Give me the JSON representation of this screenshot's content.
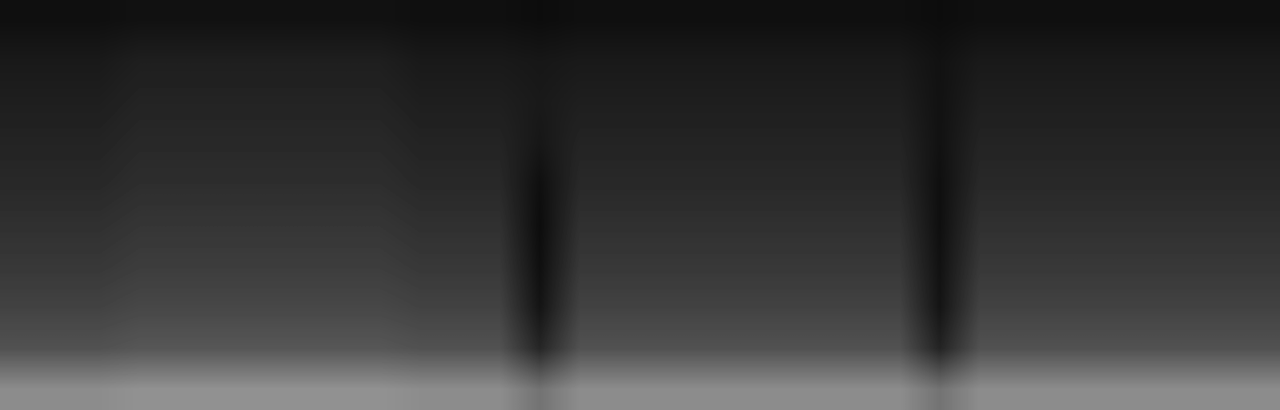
{
  "chart_data": {
    "type": "heatmap",
    "tick_labels": false,
    "grid": false,
    "color": "gray",
    "color_range": [
      0,
      1
    ],
    "cells": [
      [
        0.06,
        0.06,
        0.06,
        0.07,
        0.07,
        0.07,
        0.07,
        0.07,
        0.07,
        0.07,
        0.06,
        0.06,
        0.06,
        0.05,
        0.06,
        0.06,
        0.06,
        0.06,
        0.06,
        0.06,
        0.06,
        0.06,
        0.06,
        0.05,
        0.06,
        0.06,
        0.06,
        0.06,
        0.06,
        0.06,
        0.06,
        0.06
      ],
      [
        0.1,
        0.1,
        0.1,
        0.12,
        0.12,
        0.12,
        0.12,
        0.12,
        0.12,
        0.12,
        0.1,
        0.1,
        0.1,
        0.09,
        0.1,
        0.1,
        0.1,
        0.1,
        0.1,
        0.1,
        0.1,
        0.1,
        0.1,
        0.07,
        0.1,
        0.1,
        0.1,
        0.1,
        0.1,
        0.1,
        0.1,
        0.1
      ],
      [
        0.12,
        0.12,
        0.12,
        0.14,
        0.14,
        0.14,
        0.14,
        0.14,
        0.14,
        0.14,
        0.12,
        0.12,
        0.12,
        0.1,
        0.12,
        0.12,
        0.12,
        0.12,
        0.12,
        0.12,
        0.12,
        0.12,
        0.12,
        0.07,
        0.12,
        0.12,
        0.12,
        0.12,
        0.12,
        0.12,
        0.12,
        0.12
      ],
      [
        0.14,
        0.14,
        0.14,
        0.16,
        0.16,
        0.16,
        0.16,
        0.16,
        0.16,
        0.16,
        0.14,
        0.14,
        0.14,
        0.09,
        0.14,
        0.14,
        0.14,
        0.14,
        0.14,
        0.14,
        0.14,
        0.14,
        0.14,
        0.07,
        0.14,
        0.14,
        0.14,
        0.14,
        0.14,
        0.14,
        0.14,
        0.14
      ],
      [
        0.16,
        0.16,
        0.16,
        0.18,
        0.18,
        0.18,
        0.18,
        0.18,
        0.18,
        0.18,
        0.16,
        0.16,
        0.16,
        0.06,
        0.16,
        0.16,
        0.16,
        0.16,
        0.16,
        0.16,
        0.16,
        0.16,
        0.16,
        0.06,
        0.16,
        0.16,
        0.16,
        0.16,
        0.16,
        0.16,
        0.16,
        0.16
      ],
      [
        0.19,
        0.19,
        0.19,
        0.21,
        0.21,
        0.21,
        0.21,
        0.21,
        0.21,
        0.21,
        0.19,
        0.19,
        0.19,
        0.05,
        0.19,
        0.19,
        0.19,
        0.19,
        0.19,
        0.19,
        0.19,
        0.19,
        0.19,
        0.06,
        0.19,
        0.19,
        0.19,
        0.19,
        0.19,
        0.19,
        0.19,
        0.19
      ],
      [
        0.22,
        0.22,
        0.22,
        0.24,
        0.24,
        0.24,
        0.24,
        0.24,
        0.24,
        0.24,
        0.22,
        0.22,
        0.22,
        0.06,
        0.22,
        0.22,
        0.22,
        0.22,
        0.22,
        0.22,
        0.22,
        0.22,
        0.22,
        0.07,
        0.22,
        0.22,
        0.22,
        0.22,
        0.22,
        0.22,
        0.22,
        0.22
      ],
      [
        0.26,
        0.26,
        0.26,
        0.28,
        0.28,
        0.28,
        0.28,
        0.28,
        0.28,
        0.28,
        0.26,
        0.26,
        0.26,
        0.08,
        0.26,
        0.26,
        0.26,
        0.26,
        0.26,
        0.26,
        0.26,
        0.26,
        0.26,
        0.08,
        0.26,
        0.26,
        0.26,
        0.26,
        0.26,
        0.26,
        0.26,
        0.26
      ],
      [
        0.32,
        0.32,
        0.32,
        0.34,
        0.34,
        0.34,
        0.34,
        0.34,
        0.34,
        0.34,
        0.32,
        0.32,
        0.32,
        0.15,
        0.32,
        0.32,
        0.32,
        0.32,
        0.32,
        0.32,
        0.32,
        0.32,
        0.32,
        0.14,
        0.32,
        0.32,
        0.32,
        0.32,
        0.32,
        0.32,
        0.32,
        0.32
      ],
      [
        0.55,
        0.55,
        0.55,
        0.57,
        0.57,
        0.57,
        0.57,
        0.57,
        0.57,
        0.57,
        0.55,
        0.55,
        0.55,
        0.45,
        0.55,
        0.55,
        0.55,
        0.55,
        0.55,
        0.55,
        0.55,
        0.55,
        0.55,
        0.45,
        0.55,
        0.55,
        0.55,
        0.55,
        0.55,
        0.55,
        0.55,
        0.55
      ]
    ]
  }
}
